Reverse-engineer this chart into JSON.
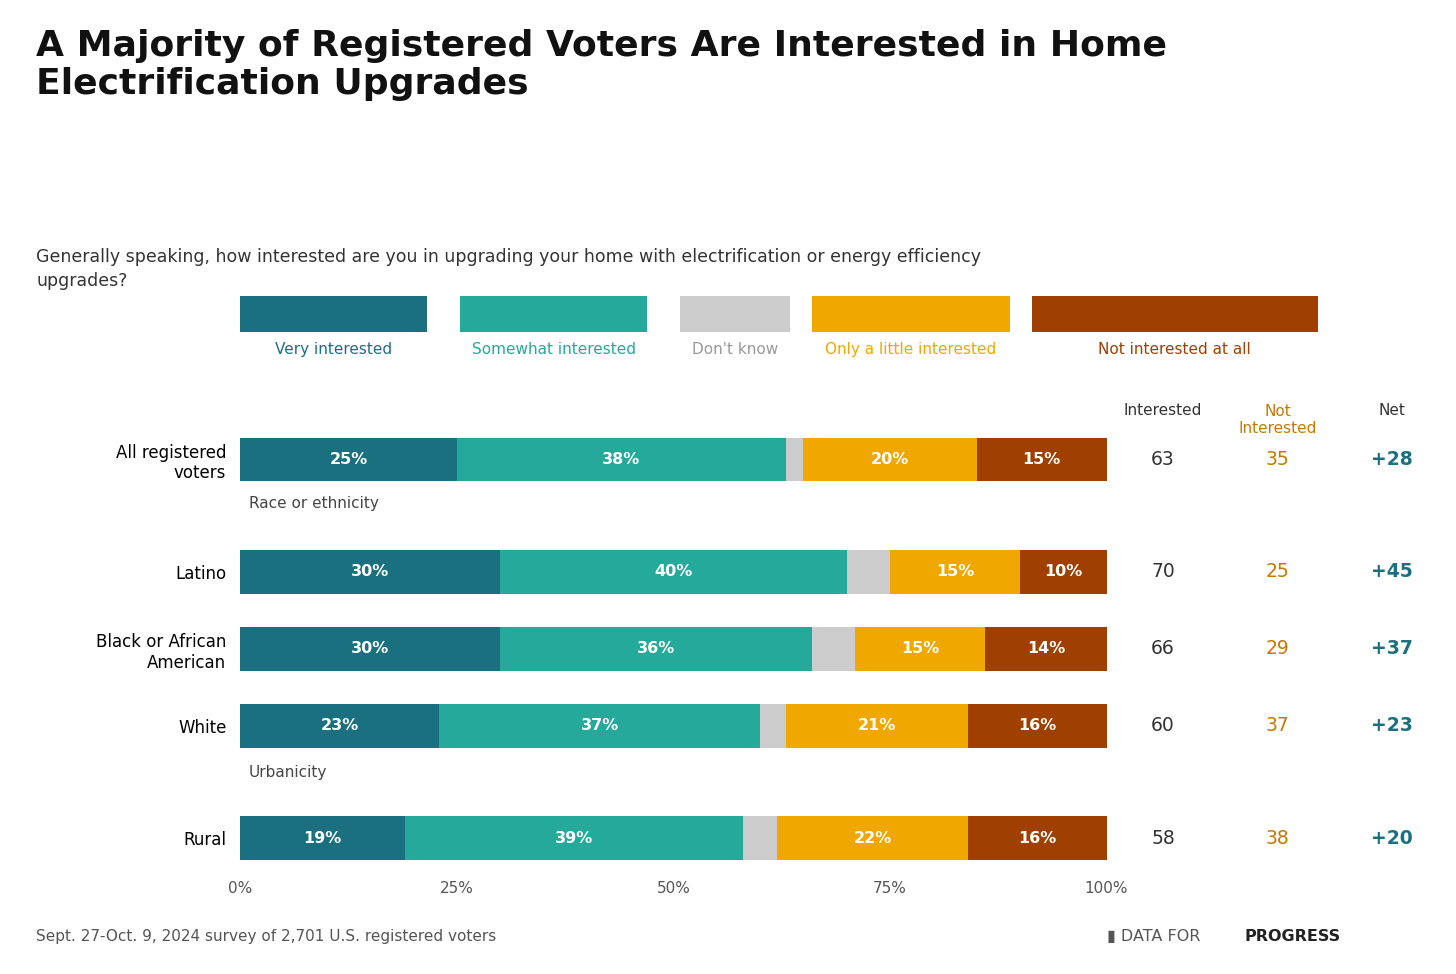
{
  "title": "A Majority of Registered Voters Are Interested in Home\nElectrification Upgrades",
  "subtitle": "Generally speaking, how interested are you in upgrading your home with electrification or energy efficiency\nupgrades?",
  "data": [
    {
      "category": "All registered\nvoters",
      "very": 25,
      "somewhat": 38,
      "dont_know": 2,
      "little": 20,
      "not": 15,
      "interested": 63,
      "not_interested": 35,
      "net": "+28"
    },
    {
      "category": "Latino",
      "very": 30,
      "somewhat": 40,
      "dont_know": 5,
      "little": 15,
      "not": 10,
      "interested": 70,
      "not_interested": 25,
      "net": "+45"
    },
    {
      "category": "Black or African\nAmerican",
      "very": 30,
      "somewhat": 36,
      "dont_know": 5,
      "little": 15,
      "not": 14,
      "interested": 66,
      "not_interested": 29,
      "net": "+37"
    },
    {
      "category": "White",
      "very": 23,
      "somewhat": 37,
      "dont_know": 3,
      "little": 21,
      "not": 16,
      "interested": 60,
      "not_interested": 37,
      "net": "+23"
    },
    {
      "category": "Rural",
      "very": 19,
      "somewhat": 39,
      "dont_know": 4,
      "little": 22,
      "not": 16,
      "interested": 58,
      "not_interested": 38,
      "net": "+20"
    }
  ],
  "colors": {
    "very": "#1b7080",
    "somewhat": "#25a99b",
    "dont_know": "#cccccc",
    "little": "#f0a800",
    "not": "#a04000",
    "background": "#ffffff"
  },
  "legend_items": [
    {
      "label": "Very interested",
      "color": "#1b7080",
      "text_color": "#1b7080"
    },
    {
      "label": "Somewhat interested",
      "color": "#25a99b",
      "text_color": "#25a99b"
    },
    {
      "label": "Don't know",
      "color": "#cccccc",
      "text_color": "#999999"
    },
    {
      "label": "Only a little interested",
      "color": "#f0a800",
      "text_color": "#f0a800"
    },
    {
      "label": "Not interested at all",
      "color": "#a04000",
      "text_color": "#a04000"
    }
  ],
  "section_labels": [
    {
      "label": "Race or ethnicity",
      "row_above": 1
    },
    {
      "label": "Urbanicity",
      "row_above": 4
    }
  ],
  "col_headers": {
    "interested_label": "Interested",
    "not_interested_label": "Not\nInterested",
    "net_label": "Net"
  },
  "footer": "Sept. 27-Oct. 9, 2024 survey of 2,701 U.S. registered voters",
  "teal_color": "#1b7080",
  "orange_color": "#c87800",
  "net_color": "#1b7080",
  "dark_color": "#333333",
  "not_interested_color": "#c87800"
}
